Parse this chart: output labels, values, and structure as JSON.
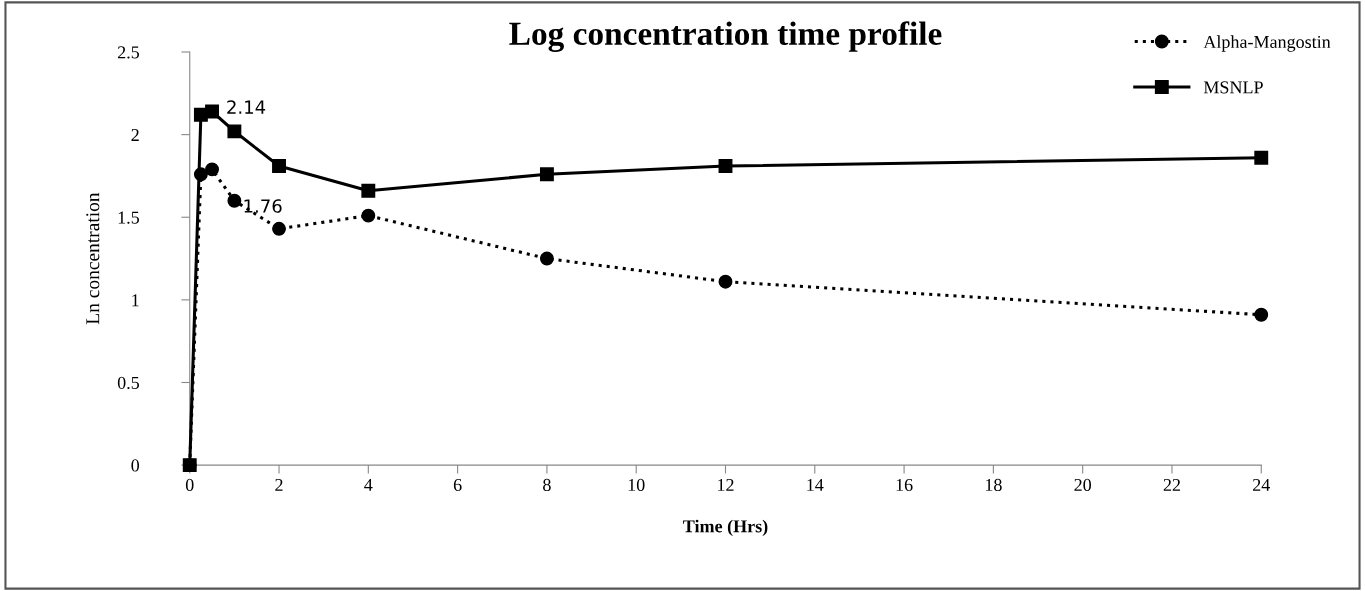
{
  "chart_data": {
    "type": "line",
    "title": "Log concentration time profile",
    "xlabel": "Time (Hrs)",
    "ylabel": "Ln concentration",
    "series": [
      {
        "name": "Alpha-Mangostin",
        "color": "#000000",
        "marker": "circle",
        "line_style": "dotted",
        "x": [
          0,
          0.25,
          0.5,
          1,
          2,
          4,
          8,
          12,
          24
        ],
        "values": [
          0,
          1.76,
          1.79,
          1.6,
          1.43,
          1.51,
          1.25,
          1.11,
          0.91
        ]
      },
      {
        "name": "MSNLP",
        "color": "#000000",
        "marker": "square",
        "line_style": "solid",
        "x": [
          0,
          0.25,
          0.5,
          1,
          2,
          4,
          8,
          12,
          24
        ],
        "values": [
          0,
          2.12,
          2.14,
          2.02,
          1.81,
          1.66,
          1.76,
          1.81,
          1.86
        ]
      }
    ],
    "annotations": [
      {
        "text": "2.14",
        "x": 0.5,
        "y": 2.14
      },
      {
        "text": "1.76",
        "x": 0.25,
        "y": 1.76
      }
    ],
    "xlim": [
      0,
      24
    ],
    "xticks": [
      0,
      2,
      4,
      6,
      8,
      10,
      12,
      14,
      16,
      18,
      20,
      22,
      24
    ],
    "ylim": [
      0,
      2.5
    ],
    "yticks": [
      0,
      0.5,
      1,
      1.5,
      2,
      2.5
    ],
    "grid": false,
    "legend": "top right"
  }
}
